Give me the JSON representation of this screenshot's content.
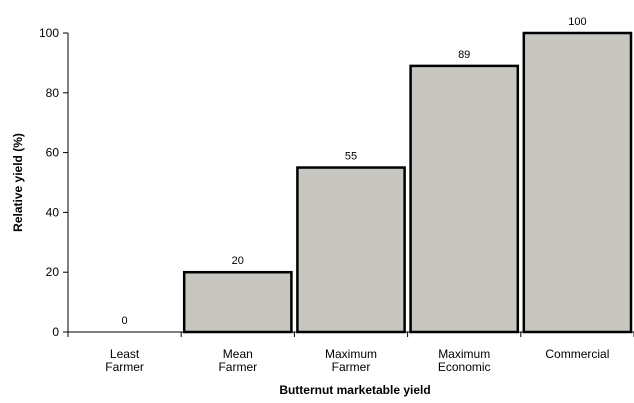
{
  "chart_data": {
    "type": "bar",
    "categories": [
      [
        "Least",
        "Farmer"
      ],
      [
        "Mean",
        "Farmer"
      ],
      [
        "Maximum",
        "Farmer"
      ],
      [
        "Maximum",
        "Economic"
      ],
      [
        "Commercial"
      ]
    ],
    "values": [
      0,
      20,
      55,
      89,
      100
    ],
    "data_labels": [
      "0",
      "20",
      "55",
      "89",
      "100"
    ],
    "xlabel": "Butternut marketable yield",
    "ylabel": "Relative yield (%)",
    "ylim": [
      0,
      100
    ],
    "yticks": [
      "0",
      "20",
      "40",
      "60",
      "80",
      "100"
    ],
    "grid": false,
    "legend": "none",
    "bar_fill": "#c8c6c0",
    "bar_stroke": "#000000"
  }
}
